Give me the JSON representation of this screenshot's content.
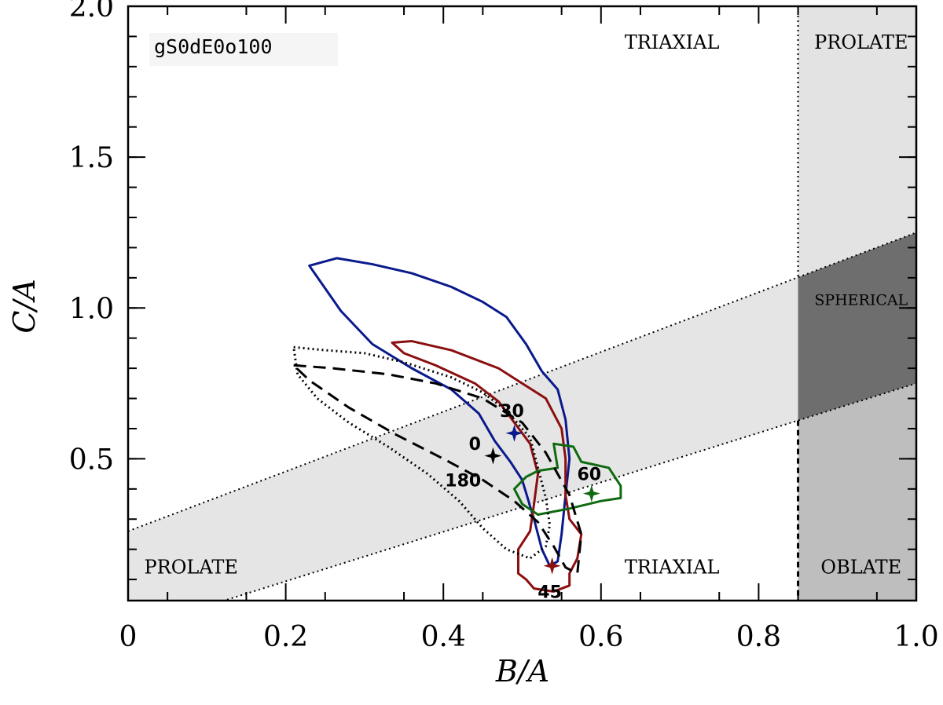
{
  "chart_data": {
    "type": "line",
    "title": "gS0dE0o100",
    "xlabel": "B/A",
    "ylabel": "C/A",
    "xlim": [
      0,
      1.0
    ],
    "ylim": [
      0.03,
      2.0
    ],
    "x_ticks": [
      "0",
      "0.2",
      "0.4",
      "0.6",
      "0.8",
      "1.0"
    ],
    "y_ticks": [
      "0.5",
      "1.0",
      "1.5",
      "2.0"
    ],
    "grid": false,
    "regions": [
      {
        "name": "TRIAXIAL",
        "x": 0.69,
        "y": 1.88
      },
      {
        "name": "PROLATE",
        "x": 0.93,
        "y": 1.88
      },
      {
        "name": "SPHERICAL",
        "x": 0.93,
        "y": 1.03
      },
      {
        "name": "PROLATE",
        "x": 0.08,
        "y": 0.14
      },
      {
        "name": "TRIAXIAL",
        "x": 0.69,
        "y": 0.14
      },
      {
        "name": "OBLATE",
        "x": 0.93,
        "y": 0.14
      }
    ],
    "bands": {
      "diagonal_lower_edge": [
        [
          0.0,
          -0.07
        ],
        [
          1.0,
          0.75
        ]
      ],
      "diagonal_upper_edge": [
        [
          0.0,
          0.26
        ],
        [
          1.0,
          1.25
        ]
      ],
      "vertical_divider_x": 0.85
    },
    "series": [
      {
        "angle": "30",
        "color": "#0a1a8c",
        "style": "solid",
        "star": [
          0.49,
          0.585
        ],
        "label_pos": [
          0.487,
          0.66
        ],
        "contour": [
          [
            0.23,
            1.14
          ],
          [
            0.265,
            1.165
          ],
          [
            0.31,
            1.145
          ],
          [
            0.36,
            1.115
          ],
          [
            0.41,
            1.07
          ],
          [
            0.45,
            1.02
          ],
          [
            0.48,
            0.97
          ],
          [
            0.505,
            0.88
          ],
          [
            0.525,
            0.79
          ],
          [
            0.545,
            0.73
          ],
          [
            0.555,
            0.63
          ],
          [
            0.56,
            0.5
          ],
          [
            0.555,
            0.38
          ],
          [
            0.55,
            0.25
          ],
          [
            0.545,
            0.16
          ],
          [
            0.535,
            0.145
          ],
          [
            0.525,
            0.2
          ],
          [
            0.515,
            0.3
          ],
          [
            0.5,
            0.43
          ],
          [
            0.485,
            0.49
          ],
          [
            0.465,
            0.56
          ],
          [
            0.445,
            0.65
          ],
          [
            0.41,
            0.73
          ],
          [
            0.36,
            0.8
          ],
          [
            0.31,
            0.88
          ],
          [
            0.27,
            0.99
          ],
          [
            0.23,
            1.14
          ]
        ]
      },
      {
        "angle": "45",
        "color": "#8b0f0f",
        "style": "solid",
        "star": [
          0.538,
          0.145
        ],
        "label_pos": [
          0.535,
          0.06
        ],
        "contour": [
          [
            0.335,
            0.885
          ],
          [
            0.36,
            0.89
          ],
          [
            0.41,
            0.86
          ],
          [
            0.47,
            0.8
          ],
          [
            0.5,
            0.75
          ],
          [
            0.53,
            0.7
          ],
          [
            0.55,
            0.6
          ],
          [
            0.555,
            0.5
          ],
          [
            0.555,
            0.38
          ],
          [
            0.56,
            0.3
          ],
          [
            0.575,
            0.25
          ],
          [
            0.57,
            0.17
          ],
          [
            0.56,
            0.12
          ],
          [
            0.56,
            0.08
          ],
          [
            0.54,
            0.06
          ],
          [
            0.515,
            0.07
          ],
          [
            0.505,
            0.1
          ],
          [
            0.495,
            0.12
          ],
          [
            0.495,
            0.2
          ],
          [
            0.51,
            0.26
          ],
          [
            0.515,
            0.35
          ],
          [
            0.52,
            0.45
          ],
          [
            0.51,
            0.55
          ],
          [
            0.49,
            0.62
          ],
          [
            0.47,
            0.69
          ],
          [
            0.44,
            0.75
          ],
          [
            0.39,
            0.81
          ],
          [
            0.35,
            0.85
          ],
          [
            0.335,
            0.885
          ]
        ]
      },
      {
        "angle": "60",
        "color": "#0f6a0f",
        "style": "solid",
        "star": [
          0.588,
          0.385
        ],
        "label_pos": [
          0.585,
          0.45
        ],
        "contour": [
          [
            0.54,
            0.55
          ],
          [
            0.565,
            0.54
          ],
          [
            0.575,
            0.49
          ],
          [
            0.61,
            0.47
          ],
          [
            0.625,
            0.41
          ],
          [
            0.625,
            0.37
          ],
          [
            0.6,
            0.36
          ],
          [
            0.56,
            0.335
          ],
          [
            0.52,
            0.315
          ],
          [
            0.5,
            0.35
          ],
          [
            0.49,
            0.4
          ],
          [
            0.505,
            0.44
          ],
          [
            0.52,
            0.46
          ],
          [
            0.545,
            0.47
          ],
          [
            0.54,
            0.55
          ]
        ]
      },
      {
        "angle": "0",
        "color": "#000000",
        "style": "dashed",
        "star": [
          0.463,
          0.51
        ],
        "label_pos": [
          0.44,
          0.55
        ],
        "contour": [
          [
            0.21,
            0.81
          ],
          [
            0.26,
            0.8
          ],
          [
            0.33,
            0.78
          ],
          [
            0.39,
            0.75
          ],
          [
            0.45,
            0.7
          ],
          [
            0.5,
            0.62
          ],
          [
            0.53,
            0.52
          ],
          [
            0.56,
            0.38
          ],
          [
            0.575,
            0.25
          ],
          [
            0.57,
            0.12
          ],
          [
            0.555,
            0.14
          ],
          [
            0.54,
            0.21
          ],
          [
            0.52,
            0.29
          ],
          [
            0.49,
            0.36
          ],
          [
            0.45,
            0.43
          ],
          [
            0.4,
            0.5
          ],
          [
            0.34,
            0.58
          ],
          [
            0.28,
            0.67
          ],
          [
            0.23,
            0.76
          ],
          [
            0.21,
            0.81
          ]
        ]
      },
      {
        "angle": "180",
        "color": "#000000",
        "style": "dotted",
        "star": null,
        "label_pos": [
          0.425,
          0.43
        ],
        "contour": [
          [
            0.21,
            0.87
          ],
          [
            0.25,
            0.86
          ],
          [
            0.3,
            0.85
          ],
          [
            0.35,
            0.82
          ],
          [
            0.41,
            0.77
          ],
          [
            0.45,
            0.72
          ],
          [
            0.48,
            0.66
          ],
          [
            0.51,
            0.57
          ],
          [
            0.52,
            0.47
          ],
          [
            0.53,
            0.37
          ],
          [
            0.535,
            0.28
          ],
          [
            0.53,
            0.21
          ],
          [
            0.51,
            0.17
          ],
          [
            0.48,
            0.2
          ],
          [
            0.45,
            0.27
          ],
          [
            0.42,
            0.36
          ],
          [
            0.38,
            0.45
          ],
          [
            0.33,
            0.54
          ],
          [
            0.28,
            0.62
          ],
          [
            0.24,
            0.7
          ],
          [
            0.215,
            0.78
          ],
          [
            0.21,
            0.87
          ]
        ]
      }
    ]
  }
}
